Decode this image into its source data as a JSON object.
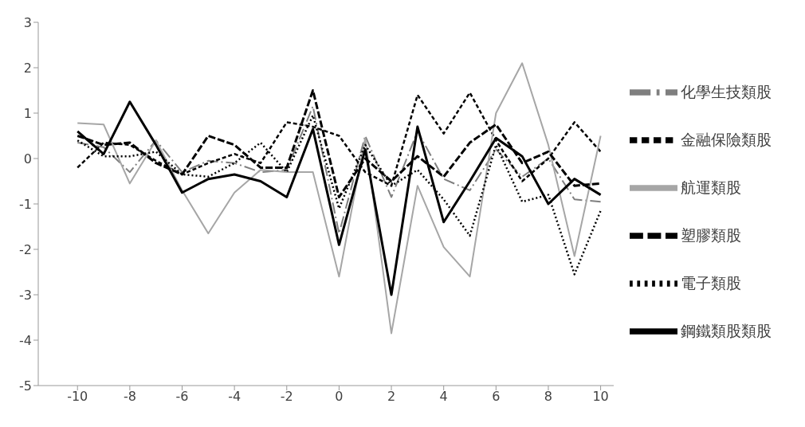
{
  "chart_data": {
    "type": "line",
    "x": [
      -10,
      -9,
      -8,
      -7,
      -6,
      -5,
      -4,
      -3,
      -2,
      -1,
      0,
      1,
      2,
      3,
      4,
      5,
      6,
      7,
      8,
      9,
      10
    ],
    "series": [
      {
        "name": "化學生技類股",
        "color": "#7f7f7f",
        "line_style": "dashed",
        "values": [
          0.35,
          0.25,
          -0.3,
          0.4,
          -0.3,
          -0.05,
          -0.1,
          -0.3,
          -0.25,
          1.15,
          -1.65,
          0.5,
          -0.85,
          0.6,
          -0.45,
          -0.7,
          0.2,
          -0.4,
          0.0,
          -0.9,
          -0.95
        ]
      },
      {
        "name": "金融保險類股",
        "color": "#000000",
        "line_style": "dashed",
        "values": [
          -0.2,
          0.35,
          0.3,
          -0.05,
          -0.35,
          -0.1,
          0.1,
          -0.1,
          0.8,
          0.7,
          0.5,
          -0.3,
          -0.6,
          1.4,
          0.55,
          1.45,
          0.4,
          -0.5,
          0.0,
          0.8,
          0.15
        ]
      },
      {
        "name": "航運類股",
        "color": "#a6a6a6",
        "line_style": "solid",
        "values": [
          0.78,
          0.75,
          -0.55,
          0.4,
          -0.7,
          -1.65,
          -0.75,
          -0.25,
          -0.3,
          -0.3,
          -2.6,
          0.45,
          -3.85,
          -0.6,
          -1.95,
          -2.6,
          1.0,
          2.1,
          0.3,
          -2.15,
          0.5
        ]
      },
      {
        "name": "塑膠類股",
        "color": "#000000",
        "line_style": "dashed",
        "values": [
          0.5,
          0.3,
          0.35,
          -0.1,
          -0.35,
          0.5,
          0.3,
          -0.2,
          -0.2,
          1.5,
          -0.85,
          0.0,
          -0.5,
          0.05,
          -0.4,
          0.35,
          0.75,
          -0.1,
          0.15,
          -0.6,
          -0.55
        ]
      },
      {
        "name": "電子類股",
        "color": "#000000",
        "line_style": "dotted",
        "values": [
          0.4,
          0.05,
          0.05,
          0.15,
          -0.35,
          -0.4,
          -0.1,
          0.35,
          -0.3,
          0.95,
          -1.1,
          0.3,
          -0.6,
          -0.25,
          -0.9,
          -1.7,
          0.3,
          -0.95,
          -0.8,
          -2.55,
          -1.15
        ]
      },
      {
        "name": "鋼鐵類股類股",
        "color": "#000000",
        "line_style": "solid",
        "values": [
          0.6,
          0.1,
          1.25,
          0.3,
          -0.75,
          -0.45,
          -0.35,
          -0.5,
          -0.85,
          0.65,
          -1.9,
          0.2,
          -3.0,
          0.7,
          -1.4,
          -0.5,
          0.45,
          0.05,
          -1.0,
          -0.45,
          -0.8
        ]
      }
    ],
    "xlim": [
      -11.5,
      10.5
    ],
    "xticks": [
      -10,
      -8,
      -6,
      -4,
      -2,
      0,
      2,
      4,
      6,
      8,
      10
    ],
    "ylim": [
      -5,
      3
    ],
    "yticks": [
      -5,
      -4,
      -3,
      -2,
      -1,
      0,
      1,
      2,
      3
    ],
    "legend": "right",
    "marker": "none"
  }
}
